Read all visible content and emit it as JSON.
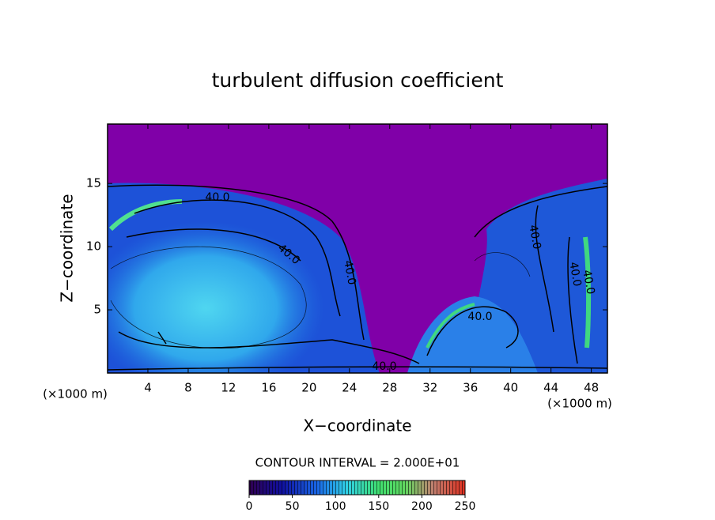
{
  "chart_data": {
    "type": "contour",
    "title": "turbulent diffusion coefficient",
    "xlabel": "X−coordinate",
    "ylabel": "Z−coordinate",
    "x_unit": "(×1000 m)",
    "x_unit_right": "(×1000 m)",
    "xlim": [
      0,
      49.6
    ],
    "ylim": [
      0,
      19.7
    ],
    "xticks": [
      4,
      8,
      12,
      16,
      20,
      24,
      28,
      32,
      36,
      40,
      44,
      48
    ],
    "yticks": [
      5,
      10,
      15
    ],
    "contour_labels": [
      "40.0",
      "40.0",
      "40.0",
      "40.0",
      "40.0",
      "40.0",
      "40.0",
      "40.0"
    ],
    "colorbar": {
      "label": "CONTOUR INTERVAL = 2.000E+01",
      "lim": [
        0,
        250
      ],
      "ticks": [
        0,
        50,
        100,
        150,
        200,
        250
      ]
    }
  }
}
